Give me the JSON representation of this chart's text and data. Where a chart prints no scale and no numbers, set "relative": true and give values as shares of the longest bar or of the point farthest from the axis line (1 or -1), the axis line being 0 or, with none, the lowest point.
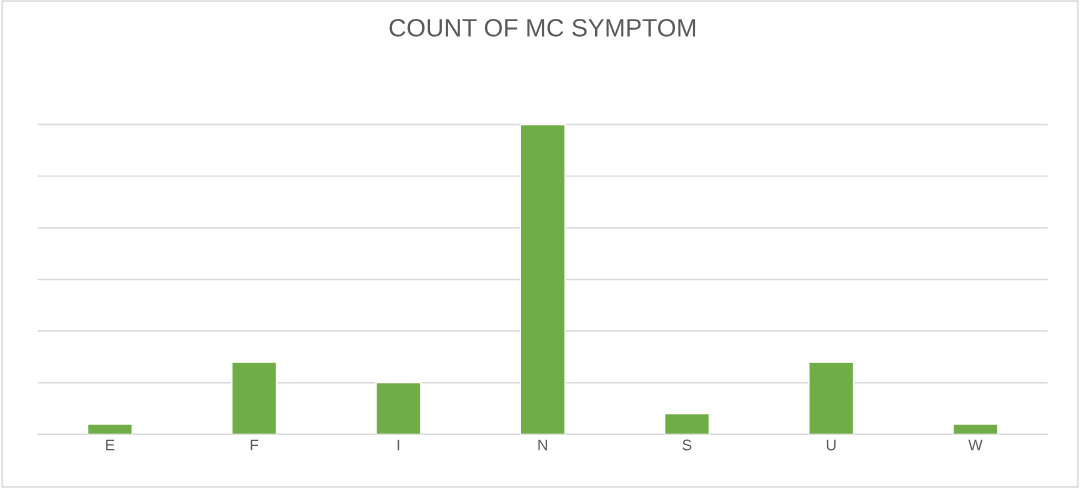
{
  "chart_data": {
    "type": "bar",
    "title": "COUNT OF MC SYMPTOM",
    "categories": [
      "E",
      "F",
      "I",
      "N",
      "S",
      "U",
      "W"
    ],
    "values": [
      0.033,
      0.233,
      0.167,
      1,
      0.067,
      0.233,
      0.033
    ],
    "color": "#70ad47",
    "relative": true,
    "grid": "y"
  }
}
